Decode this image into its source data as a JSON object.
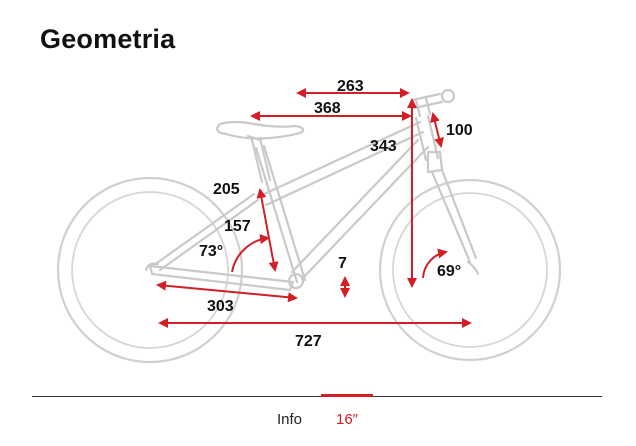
{
  "title": "Geometria",
  "labels": {
    "reach": "263",
    "top_tube": "368",
    "stem": "100",
    "stack": "343",
    "seat_tube": "205",
    "head_tube_len": "157",
    "seat_angle": "73°",
    "bb_drop": "7",
    "head_angle": "69°",
    "chainstay": "303",
    "wheelbase": "727"
  },
  "tabs": [
    {
      "label": "Info",
      "active": false
    },
    {
      "label": "16″",
      "active": true
    }
  ],
  "colors": {
    "accent": "#d21f26",
    "frame": "#c9c9c9",
    "text": "#111111"
  }
}
